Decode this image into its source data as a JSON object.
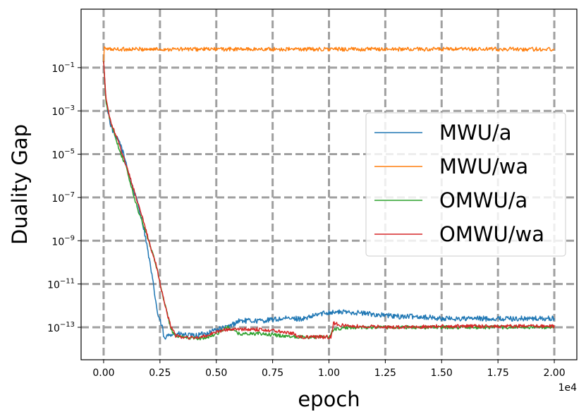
{
  "chart_data": {
    "type": "line",
    "title": "",
    "xlabel": "epoch",
    "ylabel": "Duality Gap",
    "x_offset_label": "1e4",
    "xlim": [
      -0.1,
      2.1
    ],
    "ylim_log10": [
      -14.5,
      1.7
    ],
    "y_scale": "log",
    "grid": true,
    "legend_position": "center-right",
    "x_ticks": [
      {
        "value": 0.0,
        "label": "0.00"
      },
      {
        "value": 0.25,
        "label": "0.25"
      },
      {
        "value": 0.5,
        "label": "0.50"
      },
      {
        "value": 0.75,
        "label": "0.75"
      },
      {
        "value": 1.0,
        "label": "1.00"
      },
      {
        "value": 1.25,
        "label": "1.25"
      },
      {
        "value": 1.5,
        "label": "1.50"
      },
      {
        "value": 1.75,
        "label": "1.75"
      },
      {
        "value": 2.0,
        "label": "2.00"
      }
    ],
    "y_ticks": [
      {
        "exp": -1,
        "base": "10",
        "sup": "−1"
      },
      {
        "exp": -3,
        "base": "10",
        "sup": "−3"
      },
      {
        "exp": -5,
        "base": "10",
        "sup": "−5"
      },
      {
        "exp": -7,
        "base": "10",
        "sup": "−7"
      },
      {
        "exp": -9,
        "base": "10",
        "sup": "−9"
      },
      {
        "exp": -11,
        "base": "10",
        "sup": "−11"
      },
      {
        "exp": -13,
        "base": "10",
        "sup": "−13"
      }
    ],
    "series": [
      {
        "name": "MWU/a",
        "color": "#1f77b4",
        "noise": 0.12,
        "points": [
          [
            0.0,
            -0.7
          ],
          [
            0.01,
            -2.5
          ],
          [
            0.03,
            -3.6
          ],
          [
            0.05,
            -4.2
          ],
          [
            0.07,
            -4.4
          ],
          [
            0.1,
            -5.4
          ],
          [
            0.13,
            -6.6
          ],
          [
            0.15,
            -7.2
          ],
          [
            0.18,
            -8.5
          ],
          [
            0.2,
            -9.7
          ],
          [
            0.22,
            -11.0
          ],
          [
            0.24,
            -12.4
          ],
          [
            0.26,
            -13.0
          ],
          [
            0.27,
            -13.6
          ],
          [
            0.29,
            -13.3
          ],
          [
            0.32,
            -13.3
          ],
          [
            0.4,
            -13.4
          ],
          [
            0.45,
            -13.3
          ],
          [
            0.5,
            -13.1
          ],
          [
            0.55,
            -13.0
          ],
          [
            0.6,
            -12.7
          ],
          [
            0.7,
            -12.7
          ],
          [
            0.8,
            -12.6
          ],
          [
            0.9,
            -12.6
          ],
          [
            0.95,
            -12.4
          ],
          [
            1.0,
            -12.3
          ],
          [
            1.05,
            -12.3
          ],
          [
            1.1,
            -12.3
          ],
          [
            1.2,
            -12.4
          ],
          [
            1.3,
            -12.5
          ],
          [
            1.4,
            -12.5
          ],
          [
            1.5,
            -12.6
          ],
          [
            1.6,
            -12.6
          ],
          [
            1.7,
            -12.6
          ],
          [
            1.8,
            -12.6
          ],
          [
            1.9,
            -12.6
          ],
          [
            2.0,
            -12.6
          ]
        ]
      },
      {
        "name": "MWU/wa",
        "color": "#ff7f0e",
        "noise": 0.09,
        "points": [
          [
            0.0,
            -0.8
          ],
          [
            0.003,
            0.0
          ],
          [
            0.01,
            -0.15
          ],
          [
            2.0,
            -0.15
          ]
        ]
      },
      {
        "name": "OMWU/a",
        "color": "#2ca02c",
        "noise": 0.08,
        "points": [
          [
            0.0,
            -0.7
          ],
          [
            0.01,
            -2.6
          ],
          [
            0.03,
            -3.5
          ],
          [
            0.05,
            -4.1
          ],
          [
            0.07,
            -4.8
          ],
          [
            0.1,
            -5.6
          ],
          [
            0.13,
            -6.8
          ],
          [
            0.15,
            -7.5
          ],
          [
            0.18,
            -8.4
          ],
          [
            0.2,
            -9.0
          ],
          [
            0.23,
            -10.0
          ],
          [
            0.26,
            -11.4
          ],
          [
            0.28,
            -12.3
          ],
          [
            0.3,
            -13.1
          ],
          [
            0.32,
            -13.45
          ],
          [
            0.4,
            -13.5
          ],
          [
            0.45,
            -13.5
          ],
          [
            0.5,
            -13.3
          ],
          [
            0.55,
            -13.0
          ],
          [
            0.6,
            -13.3
          ],
          [
            0.7,
            -13.3
          ],
          [
            0.8,
            -13.4
          ],
          [
            0.9,
            -13.45
          ],
          [
            1.0,
            -13.45
          ],
          [
            1.02,
            -13.1
          ],
          [
            1.1,
            -13.0
          ],
          [
            1.2,
            -13.0
          ],
          [
            1.3,
            -13.0
          ],
          [
            1.5,
            -13.0
          ],
          [
            1.7,
            -13.0
          ],
          [
            1.9,
            -13.0
          ],
          [
            2.0,
            -13.0
          ]
        ]
      },
      {
        "name": "OMWU/wa",
        "color": "#d62728",
        "noise": 0.08,
        "points": [
          [
            0.0,
            -0.7
          ],
          [
            0.01,
            -2.4
          ],
          [
            0.03,
            -3.5
          ],
          [
            0.05,
            -4.0
          ],
          [
            0.07,
            -4.6
          ],
          [
            0.1,
            -5.5
          ],
          [
            0.13,
            -6.5
          ],
          [
            0.15,
            -7.2
          ],
          [
            0.18,
            -8.2
          ],
          [
            0.2,
            -9.0
          ],
          [
            0.23,
            -10.0
          ],
          [
            0.26,
            -11.4
          ],
          [
            0.28,
            -12.3
          ],
          [
            0.3,
            -13.0
          ],
          [
            0.32,
            -13.4
          ],
          [
            0.4,
            -13.5
          ],
          [
            0.45,
            -13.4
          ],
          [
            0.5,
            -13.2
          ],
          [
            0.55,
            -13.1
          ],
          [
            0.6,
            -13.1
          ],
          [
            0.7,
            -13.1
          ],
          [
            0.8,
            -13.2
          ],
          [
            0.85,
            -13.3
          ],
          [
            0.86,
            -13.45
          ],
          [
            1.0,
            -13.45
          ],
          [
            1.01,
            -13.45
          ],
          [
            1.02,
            -12.8
          ],
          [
            1.05,
            -12.9
          ],
          [
            1.1,
            -12.95
          ],
          [
            1.3,
            -13.0
          ],
          [
            1.5,
            -12.95
          ],
          [
            1.7,
            -12.95
          ],
          [
            1.9,
            -12.95
          ],
          [
            2.0,
            -12.95
          ]
        ]
      }
    ]
  }
}
